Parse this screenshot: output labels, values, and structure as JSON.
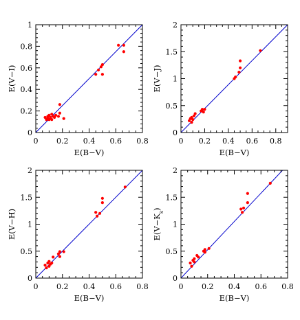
{
  "chart_data": [
    {
      "type": "scatter",
      "xlabel": "E(B−V)",
      "ylabel": "E(V−I)",
      "ylabel_subscript": "",
      "xlim": [
        0,
        0.8
      ],
      "ylim": [
        0,
        1
      ],
      "xticks": [
        "0",
        "0.2",
        "0.4",
        "0.6",
        "0.8"
      ],
      "xtick_values": [
        0,
        0.2,
        0.4,
        0.6,
        0.8
      ],
      "yticks": [
        "0",
        "0.2",
        "0.4",
        "0.6",
        "0.8",
        "1"
      ],
      "ytick_values": [
        0,
        0.2,
        0.4,
        0.6,
        0.8,
        1
      ],
      "points": [
        [
          0.07,
          0.14
        ],
        [
          0.08,
          0.12
        ],
        [
          0.09,
          0.15
        ],
        [
          0.09,
          0.13
        ],
        [
          0.1,
          0.16
        ],
        [
          0.1,
          0.12
        ],
        [
          0.11,
          0.14
        ],
        [
          0.12,
          0.17
        ],
        [
          0.12,
          0.12
        ],
        [
          0.13,
          0.15
        ],
        [
          0.14,
          0.14
        ],
        [
          0.15,
          0.16
        ],
        [
          0.17,
          0.15
        ],
        [
          0.18,
          0.26
        ],
        [
          0.18,
          0.18
        ],
        [
          0.21,
          0.13
        ],
        [
          0.45,
          0.54
        ],
        [
          0.47,
          0.58
        ],
        [
          0.49,
          0.61
        ],
        [
          0.5,
          0.63
        ],
        [
          0.5,
          0.54
        ],
        [
          0.62,
          0.81
        ],
        [
          0.66,
          0.81
        ],
        [
          0.66,
          0.75
        ]
      ],
      "fit_line": [
        [
          0,
          0
        ],
        [
          0.8,
          1.0
        ]
      ],
      "point_color": "#ff0000",
      "line_color": "#0000cc"
    },
    {
      "type": "scatter",
      "xlabel": "E(B−V)",
      "ylabel": "E(V−J)",
      "ylabel_subscript": "",
      "xlim": [
        0,
        0.9
      ],
      "ylim": [
        0,
        2
      ],
      "xticks": [
        "0",
        "0.2",
        "0.4",
        "0.6",
        "0.8"
      ],
      "xtick_values": [
        0,
        0.2,
        0.4,
        0.6,
        0.8
      ],
      "yticks": [
        "0",
        "0.5",
        "1",
        "1.5",
        "2"
      ],
      "ytick_values": [
        0,
        0.5,
        1,
        1.5,
        2
      ],
      "points": [
        [
          0.07,
          0.22
        ],
        [
          0.08,
          0.26
        ],
        [
          0.09,
          0.19
        ],
        [
          0.09,
          0.28
        ],
        [
          0.1,
          0.24
        ],
        [
          0.11,
          0.31
        ],
        [
          0.12,
          0.35
        ],
        [
          0.17,
          0.4
        ],
        [
          0.18,
          0.43
        ],
        [
          0.19,
          0.38
        ],
        [
          0.2,
          0.43
        ],
        [
          0.45,
          1.0
        ],
        [
          0.46,
          1.03
        ],
        [
          0.49,
          1.12
        ],
        [
          0.5,
          1.2
        ],
        [
          0.5,
          1.33
        ],
        [
          0.67,
          1.52
        ]
      ],
      "fit_line": [
        [
          0,
          0
        ],
        [
          0.9,
          2.0
        ]
      ],
      "point_color": "#ff0000",
      "line_color": "#0000cc"
    },
    {
      "type": "scatter",
      "xlabel": "E(B−V)",
      "ylabel": "E(V−H)",
      "ylabel_subscript": "",
      "xlim": [
        0,
        0.8
      ],
      "ylim": [
        0,
        2
      ],
      "xticks": [
        "0",
        "0.2",
        "0.4",
        "0.6",
        "0.8"
      ],
      "xtick_values": [
        0,
        0.2,
        0.4,
        0.6,
        0.8
      ],
      "yticks": [
        "0",
        "0.5",
        "1",
        "1.5",
        "2"
      ],
      "ytick_values": [
        0,
        0.5,
        1,
        1.5,
        2
      ],
      "points": [
        [
          0.07,
          0.24
        ],
        [
          0.08,
          0.19
        ],
        [
          0.09,
          0.28
        ],
        [
          0.1,
          0.22
        ],
        [
          0.1,
          0.31
        ],
        [
          0.11,
          0.26
        ],
        [
          0.12,
          0.28
        ],
        [
          0.13,
          0.39
        ],
        [
          0.17,
          0.45
        ],
        [
          0.18,
          0.49
        ],
        [
          0.18,
          0.4
        ],
        [
          0.21,
          0.49
        ],
        [
          0.45,
          1.22
        ],
        [
          0.46,
          1.15
        ],
        [
          0.48,
          1.2
        ],
        [
          0.5,
          1.4
        ],
        [
          0.5,
          1.48
        ],
        [
          0.67,
          1.69
        ]
      ],
      "fit_line": [
        [
          0,
          0
        ],
        [
          0.8,
          2.0
        ]
      ],
      "point_color": "#ff0000",
      "line_color": "#0000cc"
    },
    {
      "type": "scatter",
      "xlabel": "E(B−V)",
      "ylabel": "E(V−K",
      "ylabel_subscript": "s",
      "ylabel_suffix": ")",
      "xlim": [
        0,
        0.8
      ],
      "ylim": [
        0,
        2
      ],
      "xticks": [
        "0",
        "0.2",
        "0.4",
        "0.6",
        "0.8"
      ],
      "xtick_values": [
        0,
        0.2,
        0.4,
        0.6,
        0.8
      ],
      "yticks": [
        "0",
        "0.5",
        "1",
        "1.5",
        "2"
      ],
      "ytick_values": [
        0,
        0.5,
        1,
        1.5,
        2
      ],
      "points": [
        [
          0.07,
          0.28
        ],
        [
          0.08,
          0.22
        ],
        [
          0.09,
          0.33
        ],
        [
          0.1,
          0.3
        ],
        [
          0.1,
          0.36
        ],
        [
          0.12,
          0.42
        ],
        [
          0.13,
          0.39
        ],
        [
          0.17,
          0.5
        ],
        [
          0.18,
          0.48
        ],
        [
          0.18,
          0.53
        ],
        [
          0.21,
          0.55
        ],
        [
          0.45,
          1.28
        ],
        [
          0.46,
          1.22
        ],
        [
          0.47,
          1.3
        ],
        [
          0.5,
          1.4
        ],
        [
          0.5,
          1.57
        ],
        [
          0.67,
          1.76
        ]
      ],
      "fit_line": [
        [
          0,
          0
        ],
        [
          0.8,
          2.1
        ]
      ],
      "point_color": "#ff0000",
      "line_color": "#0000cc"
    }
  ]
}
